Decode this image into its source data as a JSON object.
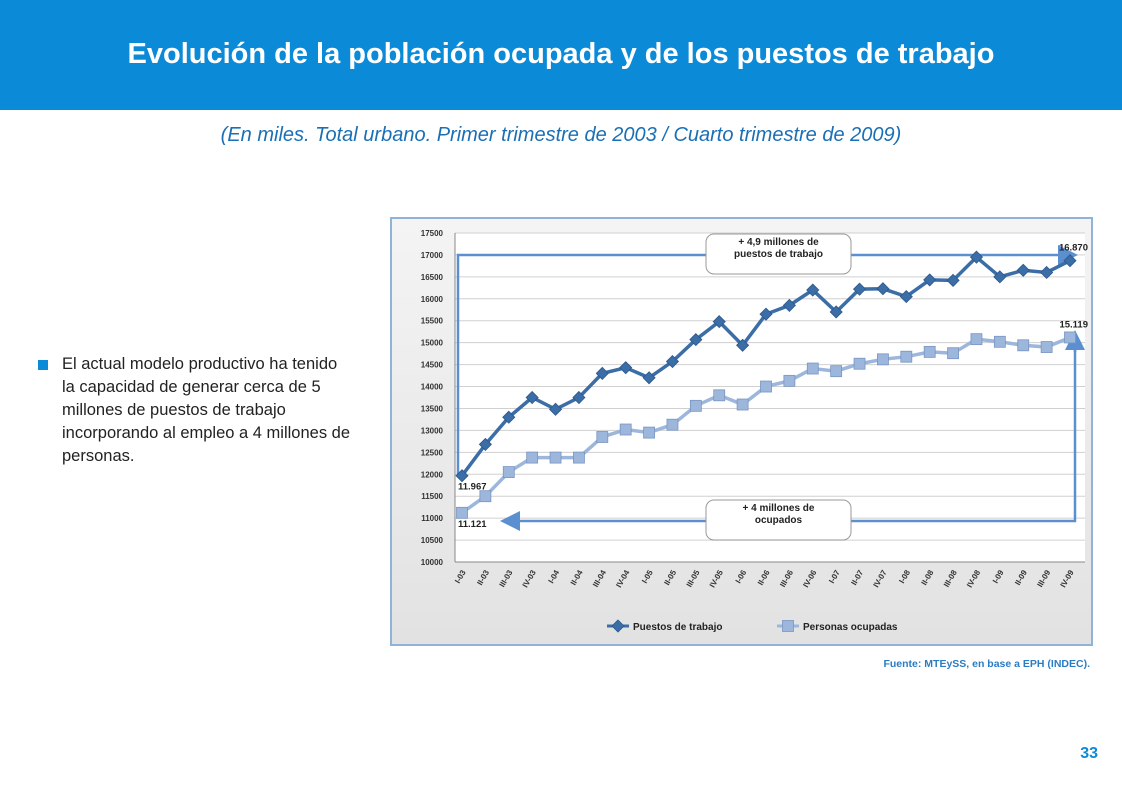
{
  "header": {
    "title": "Evolución de la población ocupada y de los puestos de trabajo"
  },
  "subtitle": "(En miles. Total urbano. Primer trimestre de 2003 / Cuarto trimestre de 2009)",
  "bullet": "El actual modelo productivo ha tenido la capacidad de generar cerca de 5 millones de puestos de trabajo incorporando al empleo a 4 millones de personas.",
  "source": "Fuente: MTEySS, en base a EPH (INDEC).",
  "page_number": "33",
  "chart_data": {
    "type": "line",
    "categories": [
      "I-03",
      "II-03",
      "III-03",
      "IV-03",
      "I-04",
      "II-04",
      "III-04",
      "IV-04",
      "I-05",
      "II-05",
      "III-05",
      "IV-05",
      "I-06",
      "II-06",
      "III-06",
      "IV-06",
      "I-07",
      "II-07",
      "IV-07",
      "I-08",
      "II-08",
      "III-08",
      "IV-08",
      "I-09",
      "II-09",
      "III-09",
      "IV-09"
    ],
    "series": [
      {
        "name": "Puestos de trabajo",
        "color": "#3b6da6",
        "marker": "diamond",
        "values": [
          11967,
          12680,
          13300,
          13750,
          13480,
          13750,
          14300,
          14430,
          14200,
          14570,
          15070,
          15480,
          14940,
          15650,
          15850,
          16200,
          15700,
          16220,
          16230,
          16050,
          16430,
          16420,
          16950,
          16500,
          16650,
          16600,
          16870
        ],
        "value_labels": [
          "11.967",
          null,
          null,
          null,
          null,
          null,
          null,
          null,
          null,
          null,
          null,
          null,
          null,
          null,
          null,
          null,
          null,
          null,
          null,
          null,
          null,
          null,
          null,
          null,
          null,
          null,
          "16.870"
        ]
      },
      {
        "name": "Personas ocupadas",
        "color": "#9db6dc",
        "marker": "square",
        "values": [
          11121,
          11500,
          12050,
          12380,
          12380,
          12380,
          12850,
          13020,
          12950,
          13130,
          13560,
          13800,
          13590,
          14000,
          14130,
          14410,
          14350,
          14520,
          14620,
          14680,
          14790,
          14760,
          15080,
          15020,
          14940,
          14900,
          15119
        ],
        "value_labels": [
          "11.121",
          null,
          null,
          null,
          null,
          null,
          null,
          null,
          null,
          null,
          null,
          null,
          null,
          null,
          null,
          null,
          null,
          null,
          null,
          null,
          null,
          null,
          null,
          null,
          null,
          null,
          "15.119"
        ]
      }
    ],
    "annotations": [
      "+ 4,9 millones de puestos de trabajo",
      "+ 4 millones de ocupados"
    ],
    "ylim": [
      10000,
      17500
    ],
    "yticks": [
      10000,
      10500,
      11000,
      11500,
      12000,
      12500,
      13000,
      13500,
      14000,
      14500,
      15000,
      15500,
      16000,
      16500,
      17000,
      17500
    ],
    "grid": true,
    "legend": "bottom"
  }
}
